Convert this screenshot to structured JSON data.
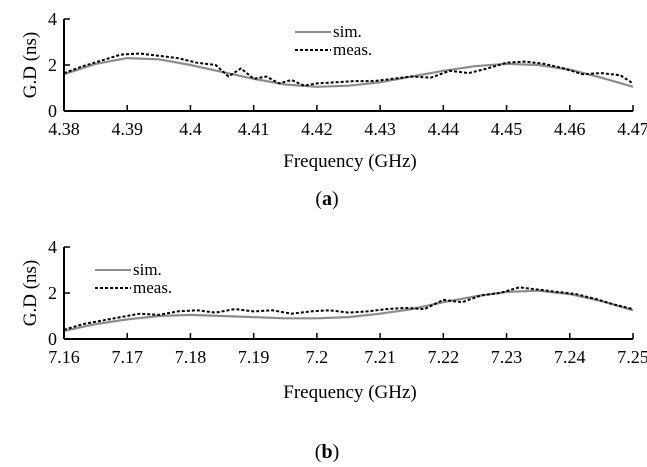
{
  "chart_data": [
    {
      "type": "line",
      "panel_label": "(a)",
      "panel_letter": "a",
      "xlabel": "Frequency (GHz)",
      "ylabel": "G.D (ns)",
      "xlim": [
        4.38,
        4.47
      ],
      "ylim": [
        0,
        4
      ],
      "xticks": [
        "4.38",
        "4.39",
        "4.4",
        "4.41",
        "4.42",
        "4.43",
        "4.44",
        "4.45",
        "4.46",
        "4.47"
      ],
      "yticks": [
        "0",
        "2",
        "4"
      ],
      "legend_position": "top-center",
      "series": [
        {
          "name": "sim.",
          "color": "#8c8c8c",
          "style": "solid",
          "x": [
            4.38,
            4.385,
            4.39,
            4.395,
            4.4,
            4.405,
            4.41,
            4.415,
            4.42,
            4.425,
            4.43,
            4.435,
            4.44,
            4.445,
            4.45,
            4.455,
            4.46,
            4.465,
            4.47
          ],
          "y": [
            1.6,
            2.05,
            2.3,
            2.25,
            2.0,
            1.7,
            1.4,
            1.15,
            1.05,
            1.1,
            1.25,
            1.5,
            1.75,
            1.95,
            2.05,
            2.0,
            1.8,
            1.45,
            1.05
          ]
        },
        {
          "name": "meas.",
          "color": "#000000",
          "style": "dashed",
          "x": [
            4.38,
            4.383,
            4.386,
            4.389,
            4.392,
            4.395,
            4.398,
            4.401,
            4.404,
            4.406,
            4.408,
            4.41,
            4.412,
            4.414,
            4.416,
            4.418,
            4.42,
            4.423,
            4.426,
            4.429,
            4.432,
            4.435,
            4.438,
            4.441,
            4.444,
            4.447,
            4.45,
            4.453,
            4.456,
            4.459,
            4.462,
            4.465,
            4.468,
            4.47
          ],
          "y": [
            1.65,
            1.95,
            2.2,
            2.45,
            2.5,
            2.4,
            2.3,
            2.1,
            2.0,
            1.5,
            1.85,
            1.4,
            1.5,
            1.2,
            1.35,
            1.1,
            1.2,
            1.25,
            1.3,
            1.3,
            1.4,
            1.5,
            1.45,
            1.75,
            1.65,
            1.85,
            2.1,
            2.15,
            2.05,
            1.85,
            1.6,
            1.65,
            1.55,
            1.2
          ]
        }
      ]
    },
    {
      "type": "line",
      "panel_label": "(b)",
      "panel_letter": "b",
      "xlabel": "Frequency (GHz)",
      "ylabel": "G.D (ns)",
      "xlim": [
        7.16,
        7.25
      ],
      "ylim": [
        0,
        4
      ],
      "xticks": [
        "7.16",
        "7.17",
        "7.18",
        "7.19",
        "7.2",
        "7.21",
        "7.22",
        "7.23",
        "7.24",
        "7.25"
      ],
      "yticks": [
        "0",
        "2",
        "4"
      ],
      "legend_position": "top-left",
      "series": [
        {
          "name": "sim.",
          "color": "#8c8c8c",
          "style": "solid",
          "x": [
            7.16,
            7.165,
            7.17,
            7.175,
            7.18,
            7.185,
            7.19,
            7.195,
            7.2,
            7.205,
            7.21,
            7.215,
            7.22,
            7.225,
            7.23,
            7.235,
            7.24,
            7.245,
            7.25
          ],
          "y": [
            0.35,
            0.65,
            0.85,
            1.0,
            1.05,
            1.0,
            0.95,
            0.9,
            0.9,
            0.95,
            1.1,
            1.3,
            1.6,
            1.85,
            2.05,
            2.1,
            1.95,
            1.65,
            1.25
          ]
        },
        {
          "name": "meas.",
          "color": "#000000",
          "style": "dashed",
          "x": [
            7.16,
            7.163,
            7.166,
            7.169,
            7.172,
            7.175,
            7.178,
            7.181,
            7.184,
            7.187,
            7.19,
            7.193,
            7.196,
            7.199,
            7.202,
            7.205,
            7.208,
            7.211,
            7.214,
            7.217,
            7.22,
            7.223,
            7.226,
            7.229,
            7.232,
            7.235,
            7.238,
            7.241,
            7.244,
            7.247,
            7.25
          ],
          "y": [
            0.4,
            0.65,
            0.8,
            0.95,
            1.1,
            1.05,
            1.2,
            1.25,
            1.15,
            1.3,
            1.2,
            1.25,
            1.1,
            1.2,
            1.25,
            1.15,
            1.2,
            1.3,
            1.35,
            1.3,
            1.7,
            1.6,
            1.9,
            2.0,
            2.25,
            2.15,
            2.05,
            1.95,
            1.75,
            1.5,
            1.3
          ]
        }
      ]
    }
  ]
}
